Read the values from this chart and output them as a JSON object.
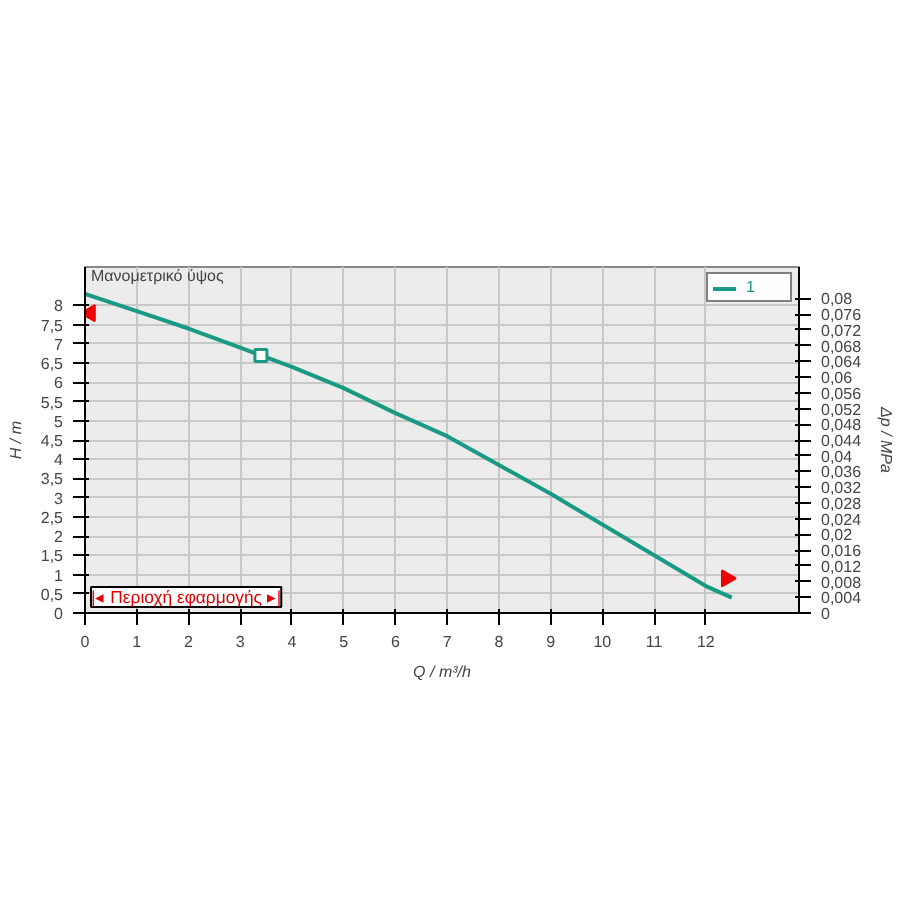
{
  "chart_data": {
    "type": "line",
    "xlabel": "Q / m³/h",
    "ylabel": "H / m",
    "y2label": "Δp / MPa",
    "annotations": [
      "Μανομετρικό ύψος",
      "|◂ Περιοχή εφαρμογής ▸|"
    ],
    "series": [
      {
        "name": "1",
        "color": "#1a9a84",
        "x": [
          0,
          1,
          2,
          3,
          3.4,
          4,
          5,
          6,
          7,
          8,
          9,
          10,
          11,
          12,
          12.5
        ],
        "values": [
          8.3,
          7.85,
          7.4,
          6.9,
          6.7,
          6.4,
          5.85,
          5.2,
          4.6,
          3.85,
          3.1,
          2.3,
          1.5,
          0.7,
          0.4
        ],
        "marker": "none"
      },
      {
        "type": "scatter",
        "color": "#1a9a84",
        "x": [
          3.4
        ],
        "values": [
          6.7
        ],
        "marker": "square"
      },
      {
        "type": "scatter",
        "color": "#ee0000",
        "x": [
          0.1,
          12.4
        ],
        "values": [
          7.8,
          0.9
        ],
        "marker": "triangle"
      }
    ],
    "xlim": [
      0,
      13.8
    ],
    "xticks": [
      0,
      1,
      2,
      3,
      4,
      5,
      6,
      7,
      8,
      9,
      10,
      11,
      12
    ],
    "ylim": [
      0,
      9
    ],
    "yticks": [
      0,
      {
        "value": 0.5,
        "label": "0,5"
      },
      1,
      {
        "value": 1.5,
        "label": "1,5"
      },
      2,
      {
        "value": 2.5,
        "label": "2,5"
      },
      3,
      {
        "value": 3.5,
        "label": "3,5"
      },
      4,
      {
        "value": 4.5,
        "label": "4,5"
      },
      5,
      {
        "value": 5.5,
        "label": "5,5"
      },
      6,
      {
        "value": 6.5,
        "label": "6,5"
      },
      7,
      {
        "value": 7.5,
        "label": "7,5"
      },
      8
    ],
    "y2lim": [
      0,
      0.088
    ],
    "y2ticks": [
      0,
      {
        "value": 0.004,
        "label": "0,004"
      },
      {
        "value": 0.008,
        "label": "0,008"
      },
      {
        "value": 0.012,
        "label": "0,012"
      },
      {
        "value": 0.016,
        "label": "0,016"
      },
      {
        "value": 0.02,
        "label": "0,02"
      },
      {
        "value": 0.024,
        "label": "0,024"
      },
      {
        "value": 0.028,
        "label": "0,028"
      },
      {
        "value": 0.032,
        "label": "0,032"
      },
      {
        "value": 0.036,
        "label": "0,036"
      },
      {
        "value": 0.04,
        "label": "0,04"
      },
      {
        "value": 0.044,
        "label": "0,044"
      },
      {
        "value": 0.048,
        "label": "0,048"
      },
      {
        "value": 0.052,
        "label": "0,052"
      },
      {
        "value": 0.056,
        "label": "0,056"
      },
      {
        "value": 0.06,
        "label": "0,06"
      },
      {
        "value": 0.064,
        "label": "0,064"
      },
      {
        "value": 0.068,
        "label": "0,068"
      },
      {
        "value": 0.072,
        "label": "0,072"
      },
      {
        "value": 0.076,
        "label": "0,076"
      },
      {
        "value": 0.08,
        "label": "0,08"
      }
    ],
    "grid": true,
    "legend": "top right"
  }
}
